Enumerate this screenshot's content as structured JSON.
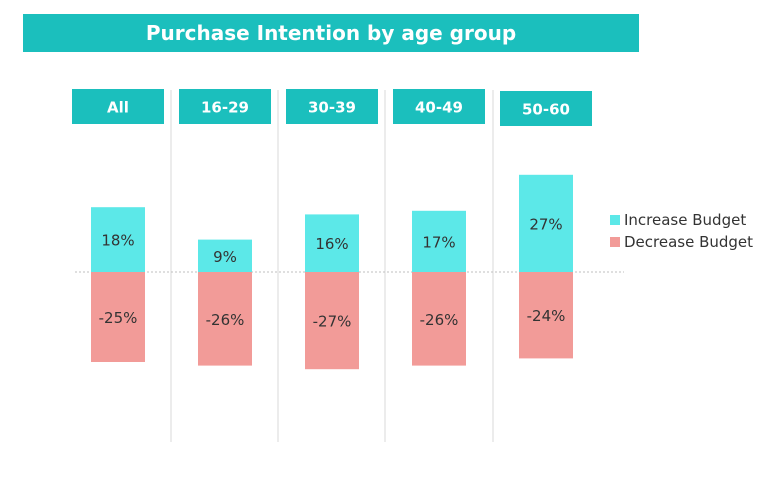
{
  "chart_data": {
    "type": "bar",
    "title": "Purchase Intention by age group",
    "categories": [
      "All",
      "16-29",
      "30-39",
      "40-49",
      "50-60"
    ],
    "series": [
      {
        "name": "Increase Budget",
        "values": [
          18,
          9,
          16,
          17,
          27
        ],
        "labels": [
          "18%",
          "9%",
          "16%",
          "17%",
          "27%"
        ],
        "color": "#5ce8e8"
      },
      {
        "name": "Decrease Budget",
        "values": [
          -25,
          -26,
          -27,
          -26,
          -24
        ],
        "labels": [
          "-25%",
          "-26%",
          "-27%",
          "-26%",
          "-24%"
        ],
        "color": "#f29b98"
      }
    ],
    "ylim": [
      -45,
      45
    ],
    "grid": false,
    "legend": "right",
    "colors": {
      "title_bg": "#1bbfbd",
      "header_bg": "#1bbfbd",
      "text": "#333333"
    }
  }
}
